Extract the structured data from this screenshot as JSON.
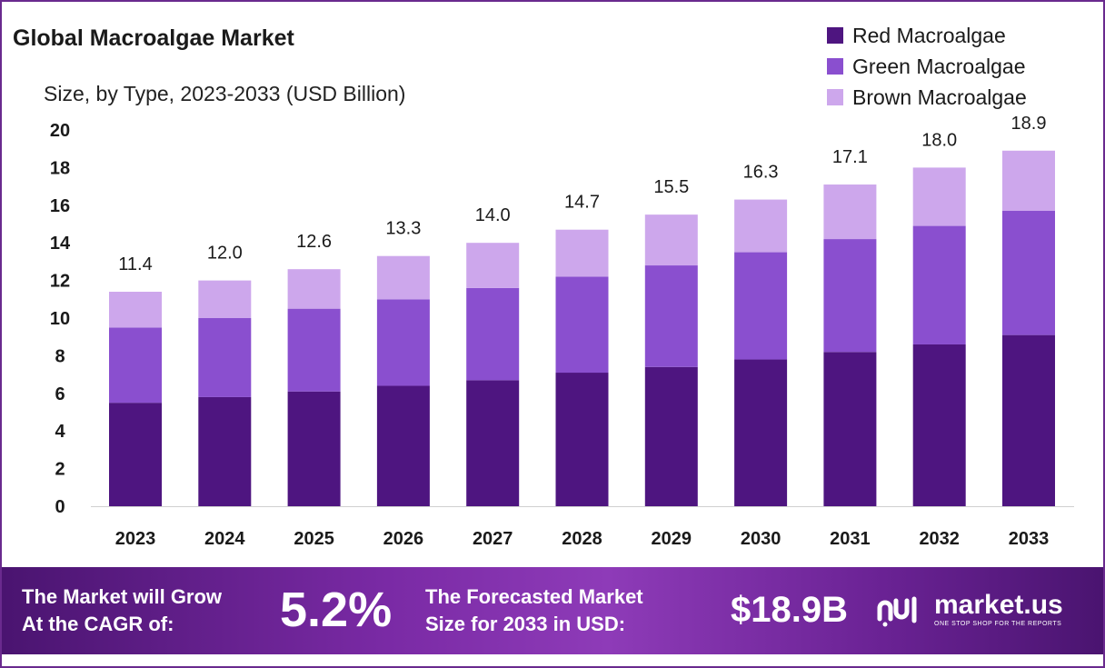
{
  "chart_data": {
    "type": "bar",
    "stacked": true,
    "title": "Global Macroalgae Market",
    "subtitle": "Size, by Type, 2023-2033 (USD Billion)",
    "categories": [
      "2023",
      "2024",
      "2025",
      "2026",
      "2027",
      "2028",
      "2029",
      "2030",
      "2031",
      "2032",
      "2033"
    ],
    "series": [
      {
        "name": "Red Macroalgae",
        "color": "#4e1580",
        "values": [
          5.5,
          5.8,
          6.1,
          6.4,
          6.7,
          7.1,
          7.4,
          7.8,
          8.2,
          8.6,
          9.1
        ]
      },
      {
        "name": "Green Macroalgae",
        "color": "#8a4fcf",
        "values": [
          4.0,
          4.2,
          4.4,
          4.6,
          4.9,
          5.1,
          5.4,
          5.7,
          6.0,
          6.3,
          6.6
        ]
      },
      {
        "name": "Brown Macroalgae",
        "color": "#cda7ec",
        "values": [
          1.9,
          2.0,
          2.1,
          2.3,
          2.4,
          2.5,
          2.7,
          2.8,
          2.9,
          3.1,
          3.2
        ]
      }
    ],
    "totals": [
      "11.4",
      "12.0",
      "12.6",
      "13.3",
      "14.0",
      "14.7",
      "15.5",
      "16.3",
      "17.1",
      "18.0",
      "18.9"
    ],
    "y_ticks": [
      "0",
      "2",
      "4",
      "6",
      "8",
      "10",
      "12",
      "14",
      "16",
      "18",
      "20"
    ],
    "ylim": [
      0,
      20
    ],
    "legend_position": "top-right",
    "grid": false
  },
  "footer": {
    "cagr_text_line1": "The Market will Grow",
    "cagr_text_line2": "At the CAGR of:",
    "cagr_value": "5.2%",
    "forecast_text_line1": "The Forecasted Market",
    "forecast_text_line2": "Size for 2033 in USD:",
    "forecast_value": "$18.9B",
    "brand_name": "market.us",
    "brand_tagline": "ONE STOP SHOP FOR THE REPORTS"
  }
}
